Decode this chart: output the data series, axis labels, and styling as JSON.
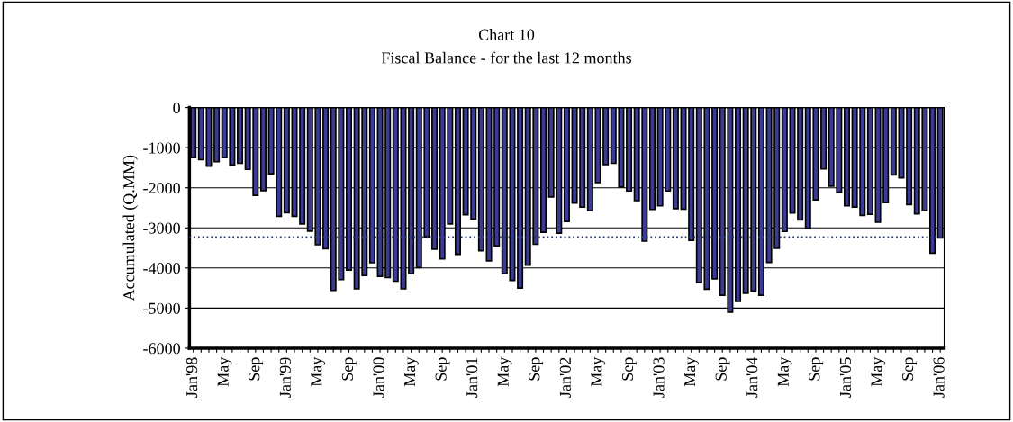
{
  "chart_data": {
    "type": "bar",
    "title": "Chart 10",
    "subtitle": "Fiscal Balance - for the last 12 months",
    "ylabel": "Accumulated (Q.MM)",
    "categories": [
      "Jan'98",
      null,
      null,
      null,
      "May",
      null,
      null,
      null,
      "Sep",
      null,
      null,
      null,
      "Jan'99",
      null,
      null,
      null,
      "May",
      null,
      null,
      null,
      "Sep",
      null,
      null,
      null,
      "Jan'00",
      null,
      null,
      null,
      "May",
      null,
      null,
      null,
      "Sep",
      null,
      null,
      null,
      "Jan'01",
      null,
      null,
      null,
      "May",
      null,
      null,
      null,
      "Sep",
      null,
      null,
      null,
      "Jan'02",
      null,
      null,
      null,
      "May",
      null,
      null,
      null,
      "Sep",
      null,
      null,
      null,
      "Jan'03",
      null,
      null,
      null,
      "May",
      null,
      null,
      null,
      "Sep",
      null,
      null,
      null,
      "Jan'04",
      null,
      null,
      null,
      "May",
      null,
      null,
      null,
      "Sep",
      null,
      null,
      null,
      "Jan'05",
      null,
      null,
      null,
      "May",
      null,
      null,
      null,
      "Sep",
      null,
      null,
      null,
      "Jan'06"
    ],
    "values": [
      -1250,
      -1300,
      -1460,
      -1350,
      -1250,
      -1430,
      -1390,
      -1540,
      -2190,
      -2070,
      -1650,
      -2710,
      -2620,
      -2710,
      -2900,
      -3080,
      -3420,
      -3520,
      -4560,
      -4290,
      -4050,
      -4520,
      -4190,
      -3870,
      -4210,
      -4240,
      -4330,
      -4520,
      -4140,
      -3990,
      -3220,
      -3530,
      -3770,
      -2900,
      -3660,
      -2670,
      -2780,
      -3570,
      -3820,
      -3450,
      -4140,
      -4310,
      -4500,
      -3930,
      -3410,
      -3110,
      -2230,
      -3130,
      -2840,
      -2380,
      -2480,
      -2570,
      -1870,
      -1420,
      -1390,
      -1980,
      -2080,
      -2320,
      -3330,
      -2540,
      -2450,
      -2080,
      -2520,
      -2530,
      -3310,
      -4360,
      -4530,
      -4270,
      -4680,
      -5100,
      -4830,
      -4630,
      -4570,
      -4680,
      -3860,
      -3510,
      -3090,
      -2630,
      -2800,
      -3010,
      -2300,
      -1530,
      -1960,
      -2110,
      -2450,
      -2480,
      -2690,
      -2660,
      -2860,
      -2370,
      -1680,
      -1750,
      -2420,
      -2650,
      -2570,
      -3630,
      -3250
    ],
    "color": "#3b3b96",
    "ylim": [
      -6000,
      0
    ],
    "yticks": [
      -6000,
      -5000,
      -4000,
      -3000,
      -2000,
      -1000,
      0
    ],
    "grid": "y",
    "ref_lines": [
      {
        "axis": "y",
        "value": -3230,
        "color": "#2b3a6e",
        "line_style": "dotted"
      }
    ]
  }
}
